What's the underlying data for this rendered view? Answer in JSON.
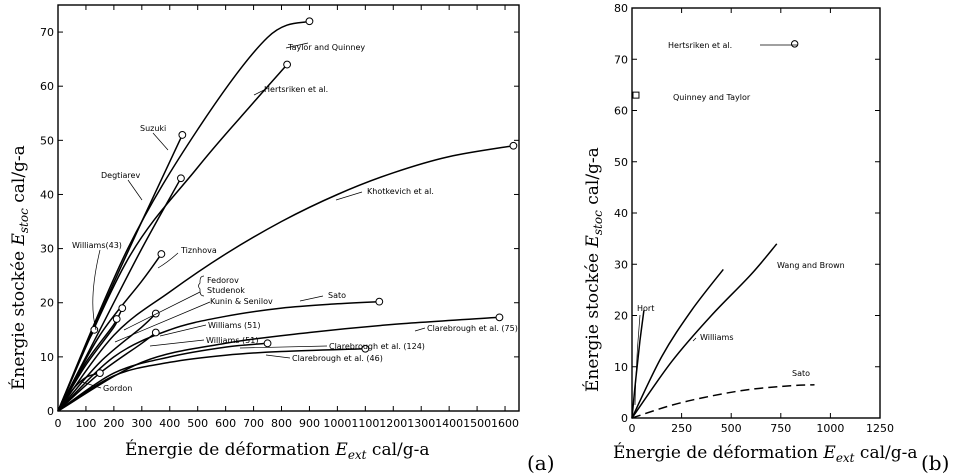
{
  "chart_data": [
    {
      "id": "a",
      "type": "line",
      "panel_label": "(a)",
      "xlabel": "Énergie de déformation E_ext cal/g-a",
      "xlabel_parts": [
        "Énergie de déformation ",
        "E",
        "ext",
        " cal/g-a"
      ],
      "ylabel": "Énergie stockée E_stoc cal/g-a",
      "ylabel_parts": [
        "Énergie stockée ",
        "E",
        "stoc",
        " cal/g-a"
      ],
      "xlim": [
        0,
        1650
      ],
      "ylim": [
        0,
        75
      ],
      "xticks": [
        0,
        100,
        200,
        300,
        400,
        500,
        600,
        700,
        800,
        900,
        1000,
        1100,
        1200,
        1300,
        1400,
        1500,
        1600
      ],
      "yticks": [
        0,
        10,
        20,
        30,
        40,
        50,
        60,
        70
      ],
      "series": [
        {
          "name": "Taylor and Quinney",
          "x": [
            0,
            250,
            500,
            750,
            900
          ],
          "y": [
            0,
            30,
            52,
            69,
            72
          ],
          "end_marker": "circle"
        },
        {
          "name": "Hertsriken et al.",
          "x": [
            0,
            250,
            500,
            700,
            820
          ],
          "y": [
            0,
            28,
            45,
            57,
            64
          ],
          "end_marker": "circle"
        },
        {
          "name": "Suzuki",
          "x": [
            0,
            150,
            300,
            445
          ],
          "y": [
            0,
            18,
            35,
            51
          ],
          "end_marker": "circle"
        },
        {
          "name": "Degtiarev",
          "x": [
            0,
            150,
            300,
            440
          ],
          "y": [
            0,
            15,
            30,
            43
          ],
          "end_marker": "circle"
        },
        {
          "name": "Khotkevich et al.",
          "x": [
            0,
            200,
            400,
            600,
            800,
            1000,
            1200,
            1400,
            1630
          ],
          "y": [
            0,
            14,
            22,
            29,
            35,
            40,
            44,
            47,
            49
          ],
          "end_marker": "circle"
        },
        {
          "name": "Williams(43)",
          "x": [
            0,
            50,
            100,
            130
          ],
          "y": [
            0,
            6,
            12,
            15
          ],
          "end_marker": "circle"
        },
        {
          "name": "Tiznhova",
          "x": [
            0,
            150,
            300,
            370
          ],
          "y": [
            0,
            14,
            24,
            29
          ],
          "end_marker": "circle"
        },
        {
          "name": "Fedorov",
          "x": [
            0,
            100,
            200,
            230
          ],
          "y": [
            0,
            9,
            16,
            19
          ],
          "end_marker": "circle"
        },
        {
          "name": "Studenok",
          "x": [
            0,
            100,
            200,
            210
          ],
          "y": [
            0,
            8.5,
            15.5,
            17
          ],
          "end_marker": "circle"
        },
        {
          "name": "Sato",
          "x": [
            0,
            200,
            400,
            600,
            800,
            1000,
            1150
          ],
          "y": [
            0,
            10,
            15,
            17.5,
            19,
            19.8,
            20.2
          ],
          "end_marker": "circle"
        },
        {
          "name": "Williams (51)",
          "x": [
            0,
            150,
            300,
            350
          ],
          "y": [
            0,
            9,
            15.5,
            18
          ],
          "end_marker": "circle"
        },
        {
          "name": "Williams (51)",
          "x": [
            0,
            150,
            300,
            350
          ],
          "y": [
            0,
            7,
            12.5,
            14.5
          ],
          "end_marker": "circle"
        },
        {
          "name": "Clarebrough et al. (75)",
          "x": [
            0,
            300,
            600,
            900,
            1200,
            1580
          ],
          "y": [
            0,
            9,
            12.5,
            14.5,
            16,
            17.3
          ],
          "end_marker": "circle"
        },
        {
          "name": "Clarebrough et al. (124)",
          "x": [
            0,
            200,
            400,
            600,
            750
          ],
          "y": [
            0,
            7,
            10,
            11.8,
            12.5
          ],
          "end_marker": "circle"
        },
        {
          "name": "Clarebrough et al. (46)",
          "x": [
            0,
            200,
            400,
            600,
            800,
            1100
          ],
          "y": [
            0,
            6.5,
            9,
            10.3,
            11,
            11.5
          ],
          "end_marker": "circle"
        },
        {
          "name": "Gordon",
          "x": [
            0,
            50,
            100,
            150
          ],
          "y": [
            0,
            3.8,
            6.2,
            7
          ],
          "end_marker": "circle"
        }
      ],
      "annotations": [
        "Taylor and Quinney",
        "Hertsriken et al.",
        "Suzuki",
        "Degtiarev",
        "Khotkevich et al.",
        "Williams(43)",
        "Tiznhova",
        "Fedorov",
        "Studenok",
        "Kunin & Senilov",
        "Sato",
        "Williams (51)",
        "Williams (51)",
        "Clarebrough et al. (75)",
        "Clarebrough et al. (124)",
        "Clarebrough et al. (46)",
        "Gordon"
      ]
    },
    {
      "id": "b",
      "type": "line",
      "panel_label": "(b)",
      "xlabel": "Énergie de déformation E_ext cal/g-a",
      "xlabel_parts": [
        "Énergie de déformation ",
        "E",
        "ext",
        " cal/g-a"
      ],
      "ylabel": "Énergie stockée E_stoc cal/g-a",
      "ylabel_parts": [
        "Énergie stockée ",
        "E",
        "stoc",
        " cal/g-a"
      ],
      "xlim": [
        0,
        1250
      ],
      "ylim": [
        0,
        80
      ],
      "xticks": [
        0,
        250,
        500,
        750,
        1000,
        1250
      ],
      "yticks": [
        0,
        10,
        20,
        30,
        40,
        50,
        60,
        70,
        80
      ],
      "series": [
        {
          "name": "Hort",
          "x": [
            0,
            20,
            40,
            60
          ],
          "y": [
            0,
            8,
            15,
            21
          ]
        },
        {
          "name": "Williams",
          "x": [
            0,
            150,
            300,
            460
          ],
          "y": [
            0,
            12,
            21,
            29
          ]
        },
        {
          "name": "Wang and Brown",
          "x": [
            0,
            200,
            400,
            600,
            730
          ],
          "y": [
            0,
            11,
            20,
            28,
            34
          ]
        },
        {
          "name": "Sato",
          "x": [
            0,
            200,
            400,
            600,
            800,
            920
          ],
          "y": [
            0,
            2.5,
            4.3,
            5.6,
            6.3,
            6.5
          ],
          "dashed": true
        }
      ],
      "points": [
        {
          "name": "Hertsriken et al.",
          "x": 820,
          "y": 73,
          "marker": "circle"
        },
        {
          "name": "Quinney and Taylor",
          "x": 20,
          "y": 63,
          "marker": "square"
        }
      ],
      "annotations": [
        "Hertsriken et al.",
        "Quinney and Taylor",
        "Hort",
        "Williams",
        "Wang and Brown",
        "Sato"
      ]
    }
  ]
}
